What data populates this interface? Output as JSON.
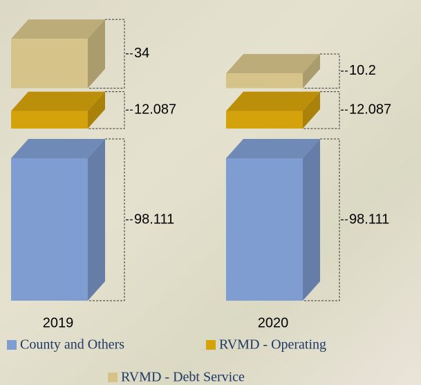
{
  "chart_data": {
    "type": "exploded-3d-stacked-bar",
    "categories": [
      "2019",
      "2020"
    ],
    "series": [
      {
        "name": "County and Others",
        "color": "#7f9dd1",
        "values": [
          98.111,
          98.111
        ]
      },
      {
        "name": "RVMD - Operating",
        "color": "#d4a30b",
        "values": [
          12.087,
          12.087
        ]
      },
      {
        "name": "RVMD - Debt Service",
        "color": "#d6c38a",
        "values": [
          34,
          10.2
        ]
      }
    ]
  }
}
